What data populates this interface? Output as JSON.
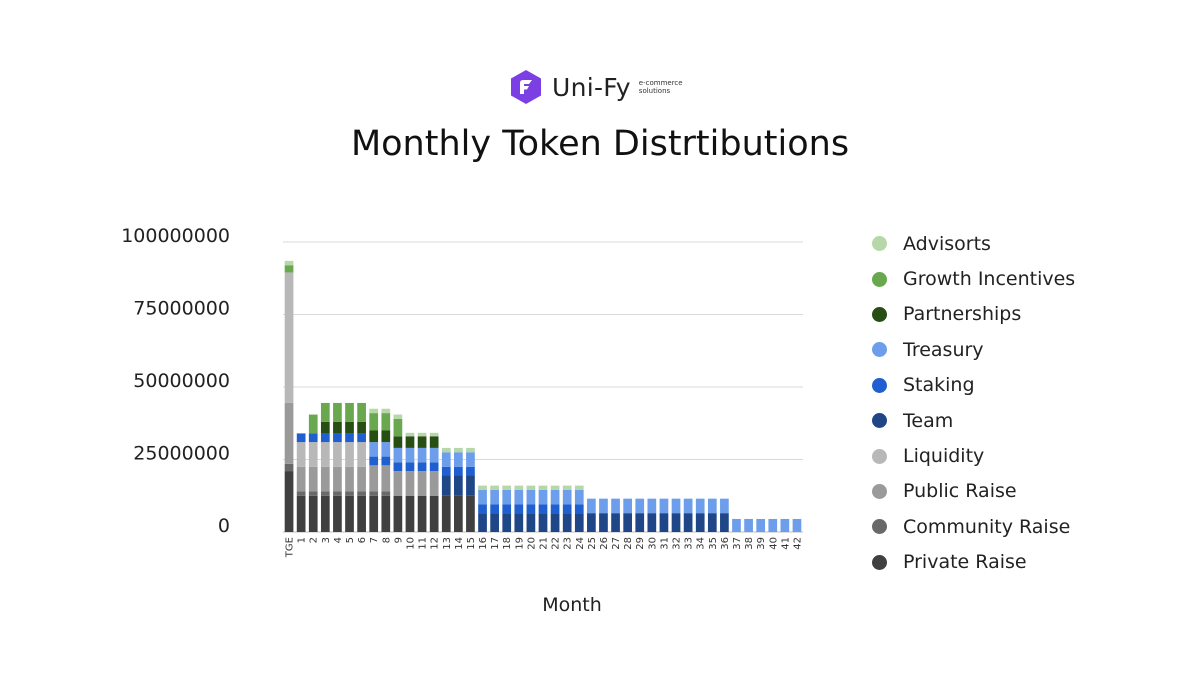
{
  "brand": {
    "name": "Uni-Fy",
    "tagline_1": "e-commerce",
    "tagline_2": "solutions",
    "color": "#7b3fe4"
  },
  "chart_data": {
    "type": "bar",
    "stacked": true,
    "title": "Monthly Token Distrtibutions",
    "xlabel": "Month",
    "ylabel": "",
    "ylim": [
      0,
      100000000
    ],
    "yticks": [
      0,
      25000000,
      50000000,
      75000000,
      100000000
    ],
    "ytick_labels": [
      "0",
      "25000000",
      "50000000",
      "75000000",
      "100000000"
    ],
    "grid": true,
    "legend_position": "right",
    "categories": [
      "TGE",
      "1",
      "2",
      "3",
      "4",
      "5",
      "6",
      "7",
      "8",
      "9",
      "10",
      "11",
      "12",
      "13",
      "14",
      "15",
      "16",
      "17",
      "18",
      "19",
      "20",
      "21",
      "22",
      "23",
      "24",
      "25",
      "26",
      "27",
      "28",
      "29",
      "30",
      "31",
      "32",
      "33",
      "34",
      "35",
      "36",
      "37",
      "38",
      "39",
      "40",
      "41",
      "42"
    ],
    "series": [
      {
        "name": "Private Raise",
        "color": "#404040",
        "values": [
          21000000,
          12500000,
          12500000,
          12500000,
          12500000,
          12500000,
          12500000,
          12500000,
          12500000,
          12500000,
          12500000,
          12500000,
          12500000,
          12500000,
          12500000,
          12500000,
          0,
          0,
          0,
          0,
          0,
          0,
          0,
          0,
          0,
          0,
          0,
          0,
          0,
          0,
          0,
          0,
          0,
          0,
          0,
          0,
          0,
          0,
          0,
          0,
          0,
          0,
          0
        ]
      },
      {
        "name": "Community Raise",
        "color": "#696969",
        "values": [
          2500000,
          1500000,
          1500000,
          1500000,
          1500000,
          1500000,
          1500000,
          1500000,
          1500000,
          0,
          0,
          0,
          0,
          0,
          0,
          0,
          0,
          0,
          0,
          0,
          0,
          0,
          0,
          0,
          0,
          0,
          0,
          0,
          0,
          0,
          0,
          0,
          0,
          0,
          0,
          0,
          0,
          0,
          0,
          0,
          0,
          0,
          0
        ]
      },
      {
        "name": "Public Raise",
        "color": "#9a9a9a",
        "values": [
          21000000,
          8500000,
          8500000,
          8500000,
          8500000,
          8500000,
          8500000,
          9000000,
          9000000,
          8500000,
          8500000,
          8500000,
          8500000,
          0,
          0,
          0,
          0,
          0,
          0,
          0,
          0,
          0,
          0,
          0,
          0,
          0,
          0,
          0,
          0,
          0,
          0,
          0,
          0,
          0,
          0,
          0,
          0,
          0,
          0,
          0,
          0,
          0,
          0
        ]
      },
      {
        "name": "Liquidity",
        "color": "#b8b8b8",
        "values": [
          45000000,
          8500000,
          8500000,
          8500000,
          8500000,
          8500000,
          8500000,
          0,
          0,
          0,
          0,
          0,
          0,
          0,
          0,
          0,
          0,
          0,
          0,
          0,
          0,
          0,
          0,
          0,
          0,
          0,
          0,
          0,
          0,
          0,
          0,
          0,
          0,
          0,
          0,
          0,
          0,
          0,
          0,
          0,
          0,
          0,
          0
        ]
      },
      {
        "name": "Team",
        "color": "#1f4788",
        "values": [
          0,
          0,
          0,
          0,
          0,
          0,
          0,
          0,
          0,
          0,
          0,
          0,
          0,
          7000000,
          7000000,
          7000000,
          6500000,
          6500000,
          6500000,
          6500000,
          6500000,
          6500000,
          6500000,
          6500000,
          6500000,
          6500000,
          6500000,
          6500000,
          6500000,
          6500000,
          6500000,
          6500000,
          6500000,
          6500000,
          6500000,
          6500000,
          6500000,
          0,
          0,
          0,
          0,
          0,
          0
        ]
      },
      {
        "name": "Staking",
        "color": "#1f5fcf",
        "values": [
          0,
          3000000,
          3000000,
          3000000,
          3000000,
          3000000,
          3000000,
          3000000,
          3000000,
          3000000,
          3000000,
          3000000,
          3000000,
          3000000,
          3000000,
          3000000,
          3000000,
          3000000,
          3000000,
          3000000,
          3000000,
          3000000,
          3000000,
          3000000,
          3000000,
          0,
          0,
          0,
          0,
          0,
          0,
          0,
          0,
          0,
          0,
          0,
          0,
          0,
          0,
          0,
          0,
          0,
          0
        ]
      },
      {
        "name": "Treasury",
        "color": "#6d9eeb",
        "values": [
          0,
          0,
          0,
          0,
          0,
          0,
          0,
          5000000,
          5000000,
          5000000,
          5000000,
          5000000,
          5000000,
          5000000,
          5000000,
          5000000,
          5000000,
          5000000,
          5000000,
          5000000,
          5000000,
          5000000,
          5000000,
          5000000,
          5000000,
          5000000,
          5000000,
          5000000,
          5000000,
          5000000,
          5000000,
          5000000,
          5000000,
          5000000,
          5000000,
          5000000,
          5000000,
          4500000,
          4500000,
          4500000,
          4500000,
          4500000,
          4500000
        ]
      },
      {
        "name": "Partnerships",
        "color": "#274e13",
        "values": [
          0,
          0,
          0,
          4000000,
          4000000,
          4000000,
          4000000,
          4000000,
          4000000,
          4000000,
          4000000,
          4000000,
          4000000,
          0,
          0,
          0,
          0,
          0,
          0,
          0,
          0,
          0,
          0,
          0,
          0,
          0,
          0,
          0,
          0,
          0,
          0,
          0,
          0,
          0,
          0,
          0,
          0,
          0,
          0,
          0,
          0,
          0,
          0
        ]
      },
      {
        "name": "Growth Incentives",
        "color": "#6aa84f",
        "values": [
          2500000,
          0,
          6500000,
          6500000,
          6500000,
          6500000,
          6500000,
          6000000,
          6000000,
          6000000,
          0,
          0,
          0,
          0,
          0,
          0,
          0,
          0,
          0,
          0,
          0,
          0,
          0,
          0,
          0,
          0,
          0,
          0,
          0,
          0,
          0,
          0,
          0,
          0,
          0,
          0,
          0,
          0,
          0,
          0,
          0,
          0,
          0
        ]
      },
      {
        "name": "Advisorts",
        "color": "#b6d7a8",
        "values": [
          1500000,
          0,
          0,
          0,
          0,
          0,
          0,
          1500000,
          1500000,
          1500000,
          1200000,
          1200000,
          1200000,
          1500000,
          1500000,
          1500000,
          1500000,
          1500000,
          1500000,
          1500000,
          1500000,
          1500000,
          1500000,
          1500000,
          1500000,
          0,
          0,
          0,
          0,
          0,
          0,
          0,
          0,
          0,
          0,
          0,
          0,
          0,
          0,
          0,
          0,
          0,
          0
        ]
      }
    ]
  }
}
